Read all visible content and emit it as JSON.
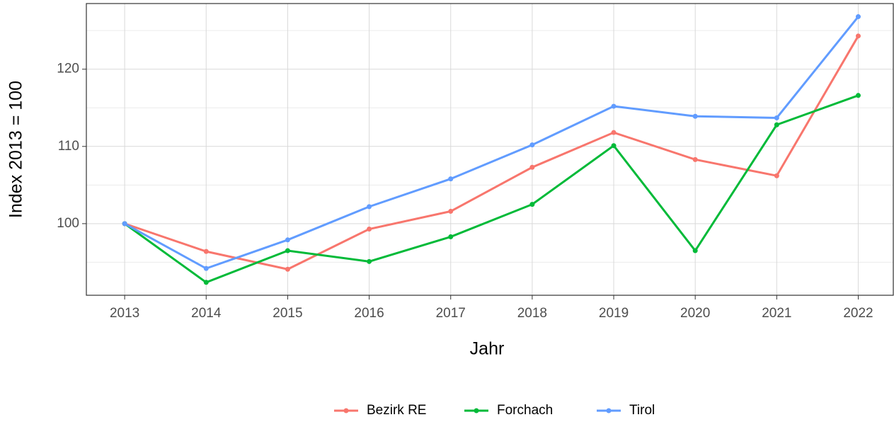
{
  "chart_data": {
    "type": "line",
    "x": [
      2013,
      2014,
      2015,
      2016,
      2017,
      2018,
      2019,
      2020,
      2021,
      2022
    ],
    "series": [
      {
        "name": "Bezirk RE",
        "color": "#F8766D",
        "values": [
          100,
          96.4,
          94.1,
          99.3,
          101.6,
          107.3,
          111.8,
          108.3,
          106.2,
          124.3
        ]
      },
      {
        "name": "Forchach",
        "color": "#00BA38",
        "values": [
          100,
          92.4,
          96.5,
          95.1,
          98.3,
          102.5,
          110.1,
          96.5,
          112.8,
          116.6
        ]
      },
      {
        "name": "Tirol",
        "color": "#619CFF",
        "values": [
          100,
          94.2,
          97.9,
          102.2,
          105.8,
          110.2,
          115.2,
          113.9,
          113.7,
          126.8
        ]
      }
    ],
    "xlabel": "Jahr",
    "ylabel": "Index  2013  = 100",
    "xlim": [
      2012.53,
      2022.43
    ],
    "xticks": [
      2013,
      2014,
      2015,
      2016,
      2017,
      2018,
      2019,
      2020,
      2021,
      2022
    ],
    "ylim": [
      90.73,
      128.5
    ],
    "yticks": [
      100,
      110,
      120
    ],
    "y_minor_ticks": [
      95,
      105,
      115,
      125
    ],
    "grid": true,
    "legend": "bottom"
  }
}
